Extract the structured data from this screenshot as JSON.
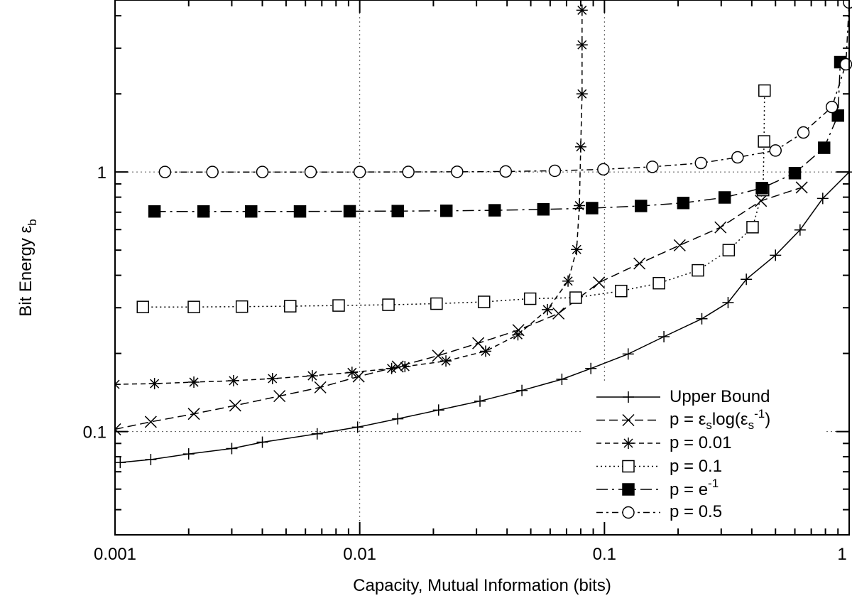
{
  "chart_data": {
    "type": "line",
    "xlabel": "Capacity, Mutual Information (bits)",
    "ylabel_main": "Bit Energy ε",
    "ylabel_sub": "b",
    "x_scale": "log",
    "y_scale": "log",
    "xlim": [
      0.001,
      1
    ],
    "ylim": [
      0.04,
      4.6
    ],
    "x_ticks": [
      {
        "value": 0.001,
        "label": "0.001"
      },
      {
        "value": 0.01,
        "label": "0.01"
      },
      {
        "value": 0.1,
        "label": "0.1"
      },
      {
        "value": 1,
        "label": "1"
      }
    ],
    "y_ticks": [
      {
        "value": 0.1,
        "label": "0.1"
      },
      {
        "value": 1,
        "label": "1"
      }
    ],
    "grid": "dotted reference lines at x=0.01, x=0.1, y=0.1, y=1",
    "legend_position": "bottom-right",
    "series": [
      {
        "name": "Upper Bound",
        "line": "solid",
        "marker": "plus",
        "x": [
          0.00105,
          0.0014,
          0.002,
          0.003,
          0.004,
          0.0067,
          0.0098,
          0.0143,
          0.021,
          0.031,
          0.046,
          0.067,
          0.088,
          0.125,
          0.175,
          0.25,
          0.32,
          0.38,
          0.5,
          0.63,
          0.78,
          1.0
        ],
        "y": [
          0.076,
          0.078,
          0.082,
          0.086,
          0.091,
          0.098,
          0.104,
          0.112,
          0.121,
          0.131,
          0.144,
          0.159,
          0.175,
          0.199,
          0.232,
          0.272,
          0.314,
          0.386,
          0.478,
          0.598,
          0.791,
          1.0
        ]
      },
      {
        "name": "p = εslog(εs-1)",
        "name_parts": {
          "a": "p = ε",
          "b": "s",
          "c": "log(ε",
          "d": "s",
          "e": "-1",
          "f": ")"
        },
        "line": "dashed",
        "marker": "x",
        "x": [
          0.001,
          0.0014,
          0.0021,
          0.0031,
          0.0047,
          0.0069,
          0.0099,
          0.0143,
          0.0209,
          0.0305,
          0.0445,
          0.0649,
          0.095,
          0.139,
          0.203,
          0.298,
          0.436,
          0.64
        ],
        "y": [
          0.102,
          0.109,
          0.117,
          0.126,
          0.137,
          0.148,
          0.163,
          0.178,
          0.196,
          0.219,
          0.246,
          0.285,
          0.375,
          0.444,
          0.522,
          0.612,
          0.774,
          0.872
        ]
      },
      {
        "name": "p = 0.01",
        "line": "short-dashed",
        "marker": "asterisk",
        "x": [
          0.001,
          0.00145,
          0.0021,
          0.00305,
          0.0044,
          0.0064,
          0.0093,
          0.0135,
          0.0153,
          0.0225,
          0.0327,
          0.0443,
          0.0585,
          0.071,
          0.077,
          0.079,
          0.08,
          0.081,
          0.081,
          0.081
        ],
        "y": [
          0.152,
          0.153,
          0.155,
          0.157,
          0.16,
          0.164,
          0.169,
          0.175,
          0.178,
          0.187,
          0.204,
          0.236,
          0.295,
          0.38,
          0.503,
          0.742,
          1.25,
          2.0,
          3.09,
          4.2
        ]
      },
      {
        "name": "p = 0.1",
        "line": "dotted",
        "marker": "open-square",
        "x": [
          0.0013,
          0.0021,
          0.0033,
          0.0052,
          0.0082,
          0.0131,
          0.0206,
          0.0322,
          0.0497,
          0.0763,
          0.117,
          0.167,
          0.241,
          0.322,
          0.403,
          0.445,
          0.449,
          0.451
        ],
        "y": [
          0.302,
          0.302,
          0.303,
          0.304,
          0.306,
          0.308,
          0.311,
          0.316,
          0.325,
          0.328,
          0.348,
          0.373,
          0.418,
          0.5,
          0.613,
          0.852,
          1.312,
          2.059
        ]
      },
      {
        "name": "p = e-1",
        "name_parts": {
          "a": "p = e",
          "b": "-1"
        },
        "line": "long-dash-dot",
        "marker": "filled-square",
        "x": [
          0.00145,
          0.0023,
          0.0036,
          0.0057,
          0.0091,
          0.0143,
          0.0226,
          0.0356,
          0.0563,
          0.089,
          0.141,
          0.21,
          0.31,
          0.44,
          0.6,
          0.79,
          0.9,
          0.92
        ],
        "y": [
          0.705,
          0.705,
          0.705,
          0.705,
          0.706,
          0.707,
          0.709,
          0.712,
          0.718,
          0.726,
          0.74,
          0.76,
          0.798,
          0.867,
          0.99,
          1.24,
          1.65,
          2.65
        ]
      },
      {
        "name": "p = 0.5",
        "line": "dash-dot",
        "marker": "open-circle",
        "x": [
          0.0016,
          0.0025,
          0.004,
          0.0063,
          0.01,
          0.0158,
          0.025,
          0.0395,
          0.0627,
          0.099,
          0.157,
          0.248,
          0.35,
          0.5,
          0.65,
          0.85,
          0.97,
          1.0
        ],
        "y": [
          1.0,
          1.0,
          1.0,
          1.0,
          1.0,
          1.001,
          1.002,
          1.005,
          1.011,
          1.024,
          1.047,
          1.083,
          1.139,
          1.21,
          1.42,
          1.78,
          2.6,
          4.5
        ]
      }
    ]
  }
}
